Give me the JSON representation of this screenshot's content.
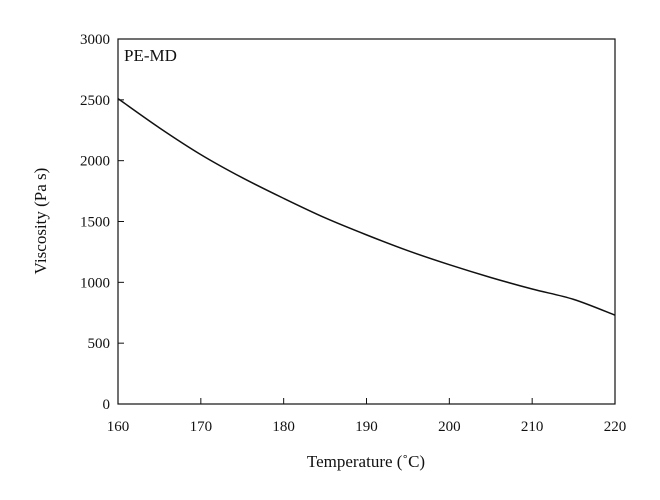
{
  "chart_data": {
    "type": "line",
    "title": "",
    "annotation": "PE-MD",
    "xlabel": "Temperature (˚C)",
    "ylabel": "Viscosity (Pa s)",
    "xlim": [
      160,
      220
    ],
    "ylim": [
      0,
      3000
    ],
    "x_ticks": [
      "160",
      "170",
      "180",
      "190",
      "200",
      "210",
      "220"
    ],
    "y_ticks": [
      "0",
      "500",
      "1000",
      "1500",
      "2000",
      "2500",
      "3000"
    ],
    "grid": false,
    "legend": "none",
    "line_color": "#111111",
    "series": [
      {
        "x": [
          160,
          165,
          170,
          175,
          180,
          185,
          190,
          195,
          200,
          205,
          210,
          215,
          220
        ],
        "y": [
          2510,
          2270,
          2050,
          1860,
          1690,
          1530,
          1390,
          1260,
          1145,
          1040,
          945,
          860,
          730
        ]
      }
    ]
  }
}
